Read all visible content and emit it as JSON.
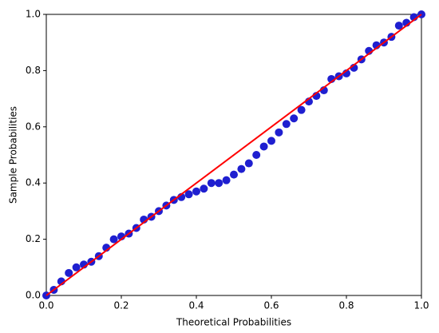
{
  "chart_data": {
    "type": "scatter",
    "xlabel": "Theoretical Probabilities",
    "ylabel": "Sample Probabilities",
    "xlim": [
      0,
      1
    ],
    "ylim": [
      0,
      1
    ],
    "xticks": [
      {
        "value": 0,
        "label": "0.0"
      },
      0.2,
      0.4,
      0.6,
      0.8,
      {
        "value": 1,
        "label": "1.0"
      }
    ],
    "yticks": [
      {
        "value": 0,
        "label": "0.0"
      },
      0.2,
      0.4,
      0.6,
      0.8,
      {
        "value": 1,
        "label": "1.0"
      }
    ],
    "series": [
      {
        "color": "#1f1fd0",
        "x": [
          0.0,
          0.02,
          0.04,
          0.06,
          0.08,
          0.1,
          0.12,
          0.14,
          0.16,
          0.18,
          0.2,
          0.22,
          0.24,
          0.26,
          0.28,
          0.3,
          0.32,
          0.34,
          0.36,
          0.38,
          0.4,
          0.42,
          0.44,
          0.46,
          0.48,
          0.5,
          0.52,
          0.54,
          0.56,
          0.58,
          0.6,
          0.62,
          0.64,
          0.66,
          0.68,
          0.7,
          0.72,
          0.74,
          0.76,
          0.78,
          0.8,
          0.82,
          0.84,
          0.86,
          0.88,
          0.9,
          0.92,
          0.94,
          0.96,
          0.98,
          1.0
        ],
        "values": [
          0.0,
          0.02,
          0.05,
          0.08,
          0.1,
          0.11,
          0.12,
          0.14,
          0.17,
          0.2,
          0.21,
          0.22,
          0.24,
          0.27,
          0.28,
          0.3,
          0.32,
          0.34,
          0.35,
          0.36,
          0.37,
          0.38,
          0.4,
          0.4,
          0.41,
          0.43,
          0.45,
          0.47,
          0.5,
          0.53,
          0.55,
          0.58,
          0.61,
          0.63,
          0.66,
          0.69,
          0.71,
          0.73,
          0.77,
          0.78,
          0.79,
          0.81,
          0.84,
          0.87,
          0.89,
          0.9,
          0.92,
          0.96,
          0.97,
          0.99,
          1.0
        ]
      }
    ],
    "reference_line": {
      "color": "#ff0000",
      "x": [
        0,
        1
      ],
      "values": [
        0,
        1
      ]
    }
  }
}
